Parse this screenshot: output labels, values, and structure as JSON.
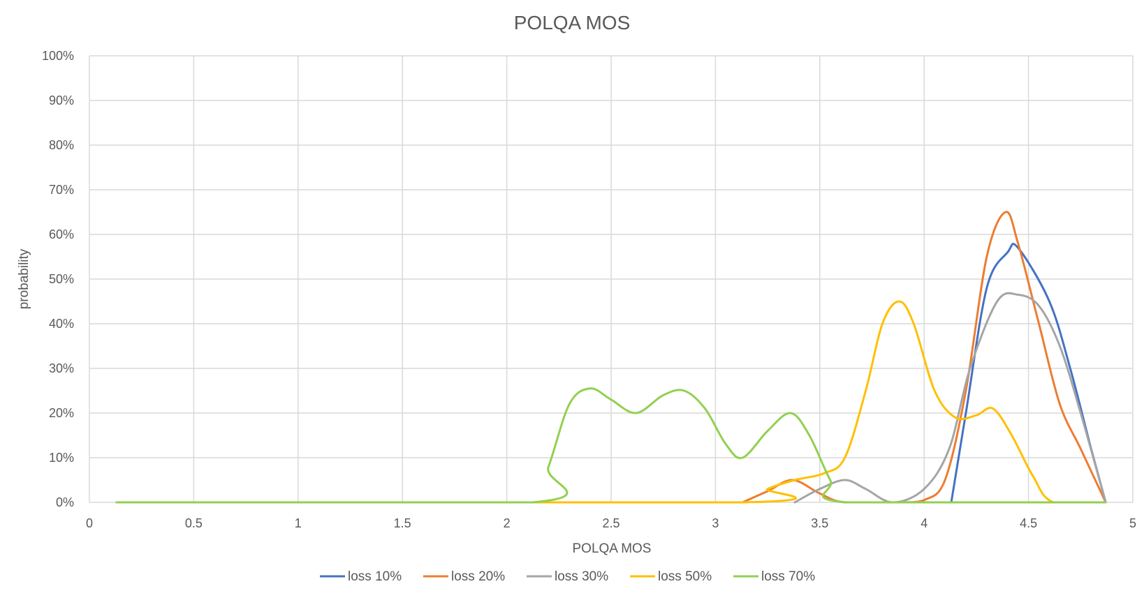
{
  "chart_data": {
    "type": "line",
    "title": "POLQA MOS",
    "xlabel": "POLQA MOS",
    "ylabel": "probability",
    "xlim": [
      0,
      5
    ],
    "ylim": [
      0,
      100
    ],
    "x_ticks": [
      "0",
      "0.5",
      "1",
      "1.5",
      "2",
      "2.5",
      "3",
      "3.5",
      "4",
      "4.5",
      "5"
    ],
    "y_ticks": [
      "0%",
      "10%",
      "20%",
      "30%",
      "40%",
      "50%",
      "60%",
      "70%",
      "80%",
      "90%",
      "100%"
    ],
    "grid": true,
    "legend_position": "bottom",
    "series": [
      {
        "name": "loss 10%",
        "color": "#4472C4",
        "x": [
          4.13,
          4.2,
          4.3,
          4.4,
          4.45,
          4.6,
          4.7,
          4.8,
          4.87
        ],
        "y": [
          0,
          20,
          48,
          56,
          57,
          45,
          30,
          12,
          0
        ]
      },
      {
        "name": "loss 20%",
        "color": "#ED7D31",
        "x": [
          3.13,
          3.25,
          3.37,
          3.5,
          3.62,
          3.9,
          4.0,
          4.1,
          4.2,
          4.3,
          4.39,
          4.45,
          4.55,
          4.65,
          4.75,
          4.87
        ],
        "y": [
          0,
          2.5,
          5,
          2,
          0,
          0,
          0.5,
          5,
          25,
          55,
          65,
          58,
          40,
          22,
          12,
          0
        ]
      },
      {
        "name": "loss 30%",
        "color": "#A5A5A5",
        "x": [
          3.38,
          3.5,
          3.62,
          3.72,
          3.85,
          4.0,
          4.12,
          4.22,
          4.35,
          4.45,
          4.55,
          4.65,
          4.75,
          4.87
        ],
        "y": [
          0,
          3,
          5,
          3,
          0,
          3,
          12,
          30,
          45,
          46.5,
          44,
          35,
          20,
          0
        ]
      },
      {
        "name": "loss 50%",
        "color": "#FFC000",
        "x": [
          0.13,
          3.13,
          3.25,
          3.38,
          3.52,
          3.62,
          3.72,
          3.8,
          3.88,
          3.95,
          4.05,
          4.15,
          4.25,
          4.33,
          4.42,
          4.52,
          4.62,
          4.87
        ],
        "y": [
          0,
          0,
          3,
          5,
          6.5,
          10,
          25,
          40,
          45,
          40,
          25,
          19,
          19.5,
          21,
          15,
          6,
          0,
          0
        ]
      },
      {
        "name": "loss 70%",
        "color": "#92D050",
        "x": [
          0.13,
          2.12,
          2.2,
          2.3,
          2.4,
          2.5,
          2.62,
          2.75,
          2.85,
          2.95,
          3.05,
          3.13,
          3.25,
          3.36,
          3.45,
          3.55,
          3.63,
          4.87
        ],
        "y": [
          0,
          0,
          8,
          22,
          25.5,
          23,
          20,
          24,
          25,
          21,
          13,
          10,
          16,
          20,
          15,
          5,
          0,
          0
        ]
      }
    ]
  }
}
